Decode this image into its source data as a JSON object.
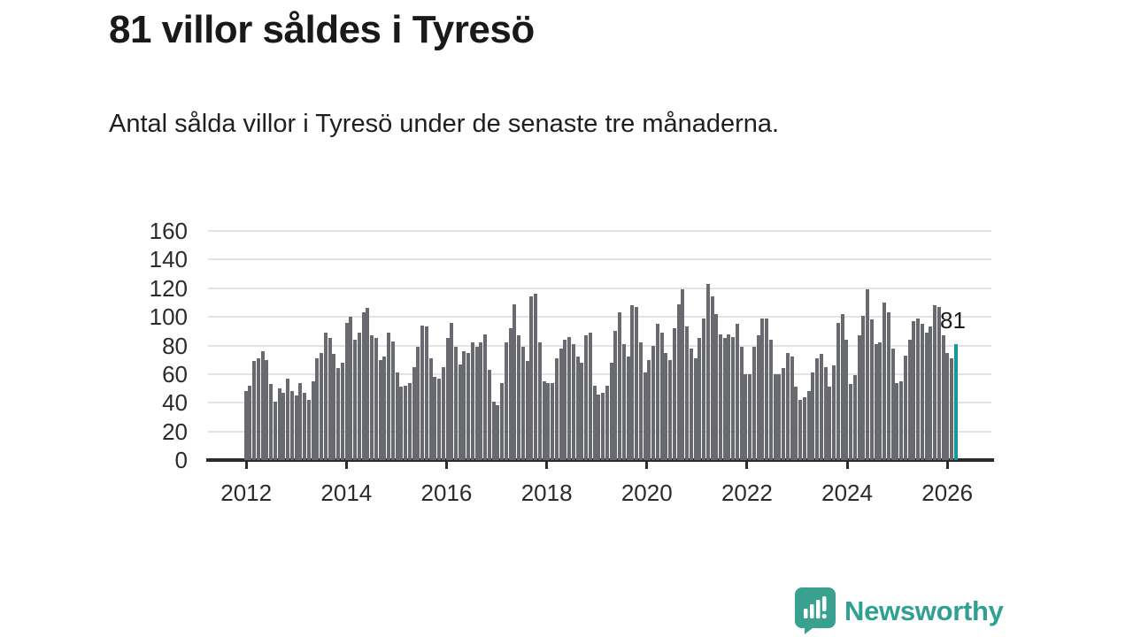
{
  "header": {
    "title": "81 villor såldes i Tyresö",
    "subtitle": "Antal sålda villor i Tyresö under de senaste tre månaderna."
  },
  "chart_data": {
    "type": "bar",
    "title": "81 villor såldes i Tyresö",
    "x_start": "2012-01",
    "x_end": "2026-02",
    "x_tick_labels": [
      "2012",
      "2014",
      "2016",
      "2018",
      "2020",
      "2022",
      "2024",
      "2026"
    ],
    "y_ticks": [
      0,
      20,
      40,
      60,
      80,
      100,
      120,
      140,
      160
    ],
    "ylim": [
      0,
      160
    ],
    "grid": "horizontal",
    "legend": "none",
    "bar_color": "#696970",
    "highlight_color": "#12999c",
    "highlight_index": 169,
    "highlight_label": "81",
    "values": [
      48,
      52,
      69,
      71,
      76,
      70,
      53,
      41,
      50,
      47,
      57,
      48,
      45,
      54,
      47,
      42,
      55,
      71,
      75,
      89,
      85,
      74,
      64,
      68,
      96,
      100,
      84,
      89,
      103,
      106,
      87,
      85,
      70,
      72,
      89,
      83,
      61,
      51,
      52,
      54,
      65,
      79,
      94,
      93,
      71,
      58,
      57,
      65,
      85,
      96,
      79,
      67,
      76,
      75,
      82,
      79,
      82,
      88,
      63,
      41,
      38,
      54,
      82,
      92,
      109,
      87,
      79,
      69,
      114,
      116,
      82,
      55,
      54,
      54,
      71,
      78,
      84,
      86,
      81,
      72,
      68,
      87,
      89,
      52,
      46,
      47,
      52,
      68,
      90,
      103,
      81,
      72,
      108,
      107,
      82,
      61,
      70,
      80,
      95,
      89,
      75,
      70,
      92,
      109,
      119,
      93,
      78,
      71,
      85,
      99,
      123,
      114,
      102,
      88,
      85,
      88,
      86,
      95,
      79,
      60,
      60,
      79,
      87,
      99,
      99,
      84,
      60,
      60,
      64,
      75,
      72,
      51,
      42,
      44,
      48,
      61,
      71,
      74,
      65,
      51,
      66,
      96,
      102,
      84,
      53,
      59,
      87,
      101,
      119,
      98,
      81,
      82,
      110,
      103,
      78,
      54,
      55,
      73,
      84,
      97,
      99,
      95,
      89,
      93,
      108,
      107,
      87,
      75,
      71,
      81
    ]
  },
  "annotation": {
    "label": "81"
  },
  "branding": {
    "name": "Newsworthy",
    "color": "#2fa092",
    "icon": "newsworthy-chart-bubble-icon"
  }
}
